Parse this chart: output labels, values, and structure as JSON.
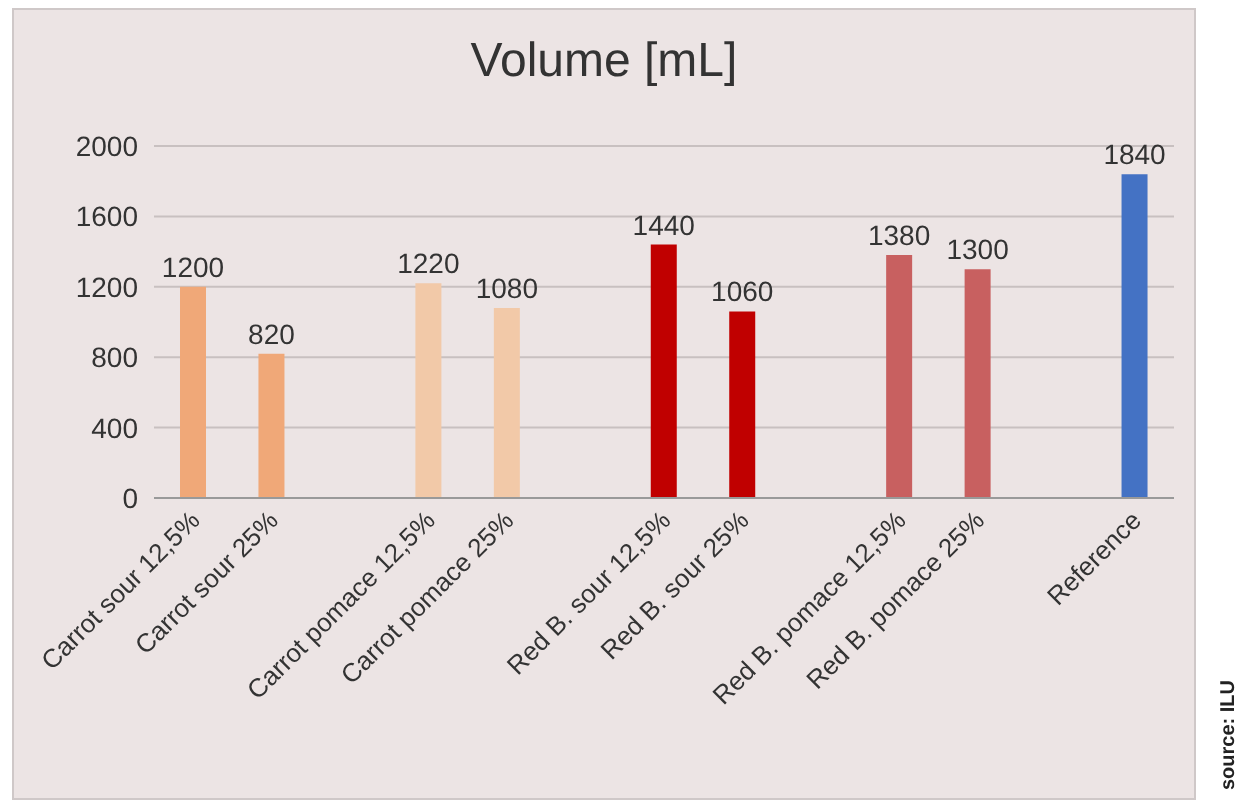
{
  "chart_data": {
    "type": "bar",
    "title": "Volume [mL]",
    "categories": [
      "Carrot sour 12,5%",
      "Carrot sour 25%",
      null,
      "Carrot pomace 12,5%",
      "Carrot pomace 25%",
      null,
      "Red B. sour 12,5%",
      "Red B. sour 25%",
      null,
      "Red B. pomace 12,5%",
      "Red B. pomace 25%",
      null,
      "Reference"
    ],
    "values": [
      1200,
      820,
      null,
      1220,
      1080,
      null,
      1440,
      1060,
      null,
      1380,
      1300,
      null,
      1840
    ],
    "colors": [
      "#f0a878",
      "#f0a878",
      "#ffffff",
      "#f2c9a8",
      "#f2c9a8",
      "#ffffff",
      "#c00000",
      "#c00000",
      "#ffffff",
      "#c86060",
      "#c86060",
      "#ffffff",
      "#4472c4"
    ],
    "ylim": [
      0,
      2000
    ],
    "yticks": [
      0,
      400,
      800,
      1200,
      1600,
      2000
    ],
    "grid": "y",
    "data_labels": true,
    "annotations": [
      "source: ILU"
    ]
  }
}
